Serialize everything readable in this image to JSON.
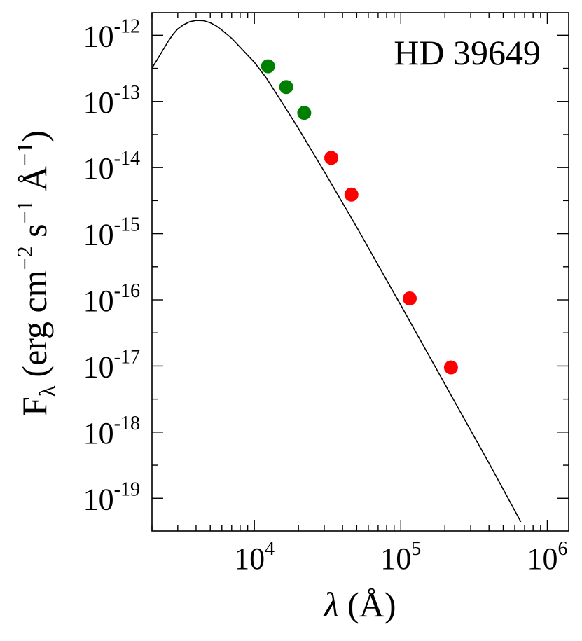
{
  "chart_data": {
    "type": "scatter",
    "annotation": "HD 39649",
    "xlabel": {
      "main": "λ",
      "unit": "(Å)"
    },
    "ylabel": {
      "main": "F",
      "sub": "λ",
      "unit": "(erg cm",
      "exp1": "−2",
      "mid": " s",
      "exp2": "−1",
      "tail": " Å",
      "exp3": "−1",
      "close": ")"
    },
    "x_scale": "log",
    "y_scale": "log",
    "xlim": [
      2000,
      1400000
    ],
    "ylim": [
      3.2e-20,
      2.2e-12
    ],
    "x_ticks": [
      {
        "base": "10",
        "exp": "4",
        "value": 10000
      },
      {
        "base": "10",
        "exp": "5",
        "value": 100000
      },
      {
        "base": "10",
        "exp": "6",
        "value": 1000000
      }
    ],
    "y_ticks": [
      {
        "base": "10",
        "exp": "-12",
        "value": 1e-12
      },
      {
        "base": "10",
        "exp": "-13",
        "value": 1e-13
      },
      {
        "base": "10",
        "exp": "-14",
        "value": 1e-14
      },
      {
        "base": "10",
        "exp": "-15",
        "value": 1e-15
      },
      {
        "base": "10",
        "exp": "-16",
        "value": 1e-16
      },
      {
        "base": "10",
        "exp": "-17",
        "value": 1e-17
      },
      {
        "base": "10",
        "exp": "-18",
        "value": 1e-18
      },
      {
        "base": "10",
        "exp": "-19",
        "value": 1e-19
      }
    ],
    "series": [
      {
        "kind": "line",
        "color": "#000000",
        "x": [
          2000,
          2200,
          2400,
          2600,
          2800,
          3000,
          3300,
          3600,
          4000,
          4500,
          5000,
          5500,
          6000,
          7000,
          8000,
          9000,
          10000,
          12000,
          15000,
          20000,
          30000,
          50000,
          100000,
          200000,
          400000,
          660000
        ],
        "y": [
          3.2e-13,
          4.5e-13,
          6.2e-13,
          8.3e-13,
          1.05e-12,
          1.25e-12,
          1.45e-12,
          1.6e-12,
          1.68e-12,
          1.66e-12,
          1.55e-12,
          1.38e-12,
          1.2e-12,
          9e-13,
          6.6e-13,
          5e-13,
          3.9e-13,
          2.3e-13,
          1.07e-13,
          3.9e-14,
          8.7e-15,
          1.25e-15,
          8.3e-17,
          5.3e-18,
          3.4e-19,
          4.4e-20
        ]
      },
      {
        "kind": "points",
        "color": "#008000",
        "x": [
          12400,
          16500,
          21900
        ],
        "y": [
          3.4e-13,
          1.65e-13,
          6.7e-14
        ]
      },
      {
        "kind": "points",
        "color": "#ff0000",
        "x": [
          33500,
          46000,
          115000,
          220000
        ],
        "y": [
          1.4e-14,
          3.9e-15,
          1.05e-16,
          9.5e-18
        ]
      }
    ]
  }
}
